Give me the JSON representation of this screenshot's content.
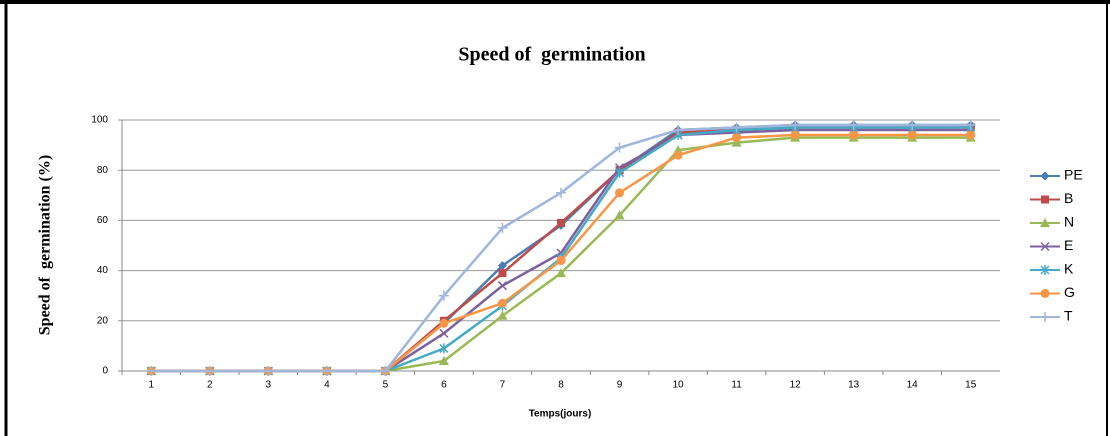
{
  "chart_data": {
    "type": "line",
    "title": "Speed of  germination",
    "x_label": "Temps(jours)",
    "y_label": "Speed of  germination (%)",
    "categories": [
      "1",
      "2",
      "3",
      "4",
      "5",
      "6",
      "7",
      "8",
      "9",
      "10",
      "11",
      "12",
      "13",
      "14",
      "15"
    ],
    "ylim": [
      0,
      100
    ],
    "yticks": [
      0,
      20,
      40,
      60,
      80,
      100
    ],
    "grid": true,
    "legend": "right",
    "series": [
      {
        "name": "PE",
        "color": "#4a7ebb",
        "marker": "diamond",
        "values": [
          0,
          0,
          0,
          0,
          0,
          19,
          42,
          58,
          80,
          96,
          97,
          98,
          98,
          98,
          98
        ]
      },
      {
        "name": "B",
        "color": "#be4b48",
        "marker": "square",
        "values": [
          0,
          0,
          0,
          0,
          0,
          20,
          39,
          59,
          80,
          95,
          96,
          97,
          97,
          97,
          97
        ]
      },
      {
        "name": "N",
        "color": "#98b954",
        "marker": "triangle",
        "values": [
          0,
          0,
          0,
          0,
          0,
          4,
          22,
          39,
          62,
          88,
          91,
          93,
          93,
          93,
          93
        ]
      },
      {
        "name": "E",
        "color": "#7d60a0",
        "marker": "x",
        "values": [
          0,
          0,
          0,
          0,
          0,
          15,
          34,
          47,
          81,
          94,
          95,
          96,
          96,
          96,
          96
        ]
      },
      {
        "name": "K",
        "color": "#46aac5",
        "marker": "star",
        "values": [
          0,
          0,
          0,
          0,
          0,
          9,
          26,
          45,
          79,
          94,
          96,
          97,
          97,
          97,
          97
        ]
      },
      {
        "name": "G",
        "color": "#f79646",
        "marker": "circle",
        "values": [
          0,
          0,
          0,
          0,
          0,
          19,
          27,
          44,
          71,
          86,
          93,
          94,
          94,
          94,
          94
        ]
      },
      {
        "name": "T",
        "color": "#9fb6dd",
        "marker": "plus",
        "values": [
          0,
          0,
          0,
          0,
          0,
          30,
          57,
          71,
          89,
          96,
          97,
          98,
          98,
          98,
          98
        ]
      }
    ]
  }
}
